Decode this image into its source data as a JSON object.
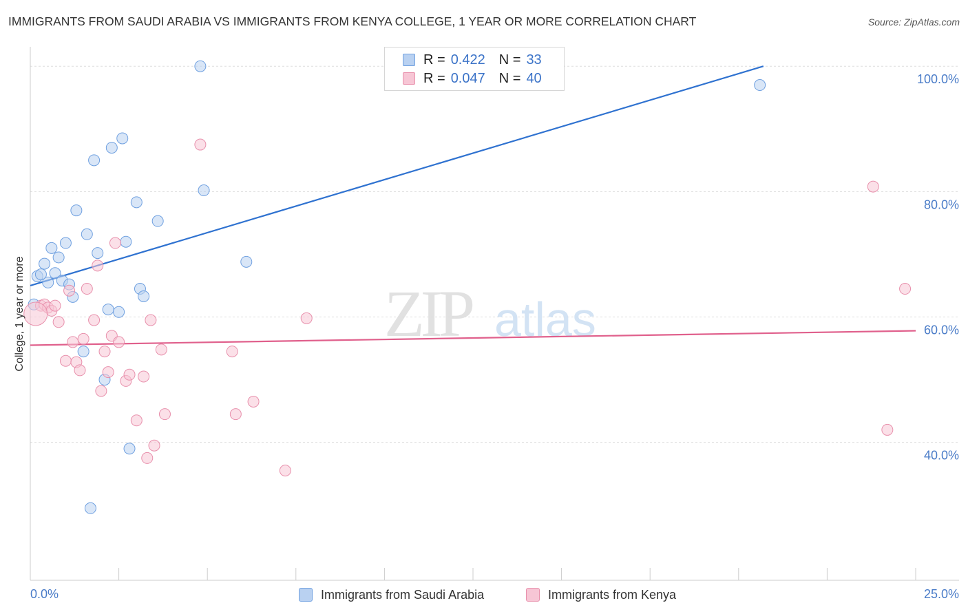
{
  "title": "IMMIGRANTS FROM SAUDI ARABIA VS IMMIGRANTS FROM KENYA COLLEGE, 1 YEAR OR MORE CORRELATION CHART",
  "source": "Source: ZipAtlas.com",
  "watermark": {
    "zip": "ZIP",
    "atlas": "atlas"
  },
  "legend_stats": [
    {
      "r_label": "R =",
      "r_value": "0.422",
      "n_label": "N =",
      "n_value": "33"
    },
    {
      "r_label": "R =",
      "r_value": "0.047",
      "n_label": "N =",
      "n_value": "40"
    }
  ],
  "chart_data": {
    "type": "scatter",
    "title": "IMMIGRANTS FROM SAUDI ARABIA VS IMMIGRANTS FROM KENYA COLLEGE, 1 YEAR OR MORE CORRELATION CHART",
    "xlabel": "",
    "ylabel": "College, 1 year or more",
    "xlim": [
      0,
      25
    ],
    "ylim": [
      18,
      102
    ],
    "x_tick_labels": [
      "0.0%",
      "25.0%"
    ],
    "y_tick_labels": [
      "40.0%",
      "60.0%",
      "80.0%",
      "100.0%"
    ],
    "y_ticks": [
      40,
      60,
      80,
      100
    ],
    "series": [
      {
        "name": "Immigrants from Saudi Arabia",
        "color": "#6fa0e0",
        "fill": "#b9d1f1",
        "line_color": "#2f72d0",
        "trend": {
          "x": [
            0,
            20.7
          ],
          "y": [
            65,
            100
          ]
        },
        "points": [
          [
            0.1,
            62
          ],
          [
            0.2,
            66.5
          ],
          [
            0.3,
            66.8
          ],
          [
            0.4,
            68.5
          ],
          [
            0.5,
            65.5
          ],
          [
            0.6,
            71
          ],
          [
            0.7,
            67
          ],
          [
            0.8,
            69.5
          ],
          [
            0.9,
            65.8
          ],
          [
            1.0,
            71.8
          ],
          [
            1.1,
            65.2
          ],
          [
            1.2,
            63.2
          ],
          [
            1.3,
            77
          ],
          [
            1.5,
            54.5
          ],
          [
            1.6,
            73.2
          ],
          [
            1.7,
            29.5
          ],
          [
            1.8,
            85
          ],
          [
            1.9,
            70.2
          ],
          [
            2.1,
            50
          ],
          [
            2.2,
            61.2
          ],
          [
            2.3,
            87
          ],
          [
            2.5,
            60.8
          ],
          [
            2.6,
            88.5
          ],
          [
            2.7,
            72
          ],
          [
            2.8,
            39
          ],
          [
            3.0,
            78.3
          ],
          [
            3.1,
            64.5
          ],
          [
            3.2,
            63.3
          ],
          [
            3.6,
            75.3
          ],
          [
            4.8,
            100
          ],
          [
            4.9,
            80.2
          ],
          [
            6.1,
            68.8
          ],
          [
            20.6,
            97
          ]
        ]
      },
      {
        "name": "Immigrants from Kenya",
        "color": "#e890ac",
        "fill": "#f7c6d5",
        "line_color": "#e0608c",
        "trend": {
          "x": [
            0,
            25
          ],
          "y": [
            55.5,
            57.8
          ]
        },
        "points": [
          [
            0.3,
            61.8
          ],
          [
            0.4,
            62
          ],
          [
            0.5,
            61.5
          ],
          [
            0.6,
            61
          ],
          [
            0.7,
            61.8
          ],
          [
            0.8,
            59.2
          ],
          [
            1.0,
            53
          ],
          [
            1.1,
            64.2
          ],
          [
            1.2,
            56
          ],
          [
            1.3,
            52.8
          ],
          [
            1.4,
            51.5
          ],
          [
            1.5,
            56.5
          ],
          [
            1.6,
            64.5
          ],
          [
            1.8,
            59.5
          ],
          [
            1.9,
            68.2
          ],
          [
            2.0,
            48.2
          ],
          [
            2.1,
            54.5
          ],
          [
            2.2,
            51.2
          ],
          [
            2.3,
            57
          ],
          [
            2.4,
            71.8
          ],
          [
            2.5,
            56
          ],
          [
            2.7,
            49.8
          ],
          [
            2.8,
            50.8
          ],
          [
            3.0,
            43.5
          ],
          [
            3.2,
            50.5
          ],
          [
            3.3,
            37.5
          ],
          [
            3.4,
            59.5
          ],
          [
            3.5,
            39.5
          ],
          [
            3.7,
            54.8
          ],
          [
            3.8,
            44.5
          ],
          [
            4.8,
            87.5
          ],
          [
            5.7,
            54.5
          ],
          [
            5.8,
            44.5
          ],
          [
            6.3,
            46.5
          ],
          [
            7.2,
            35.5
          ],
          [
            7.8,
            59.8
          ],
          [
            23.8,
            80.8
          ],
          [
            24.2,
            42.0
          ],
          [
            24.7,
            64.5
          ],
          [
            0.15,
            60.5
          ]
        ]
      }
    ]
  }
}
